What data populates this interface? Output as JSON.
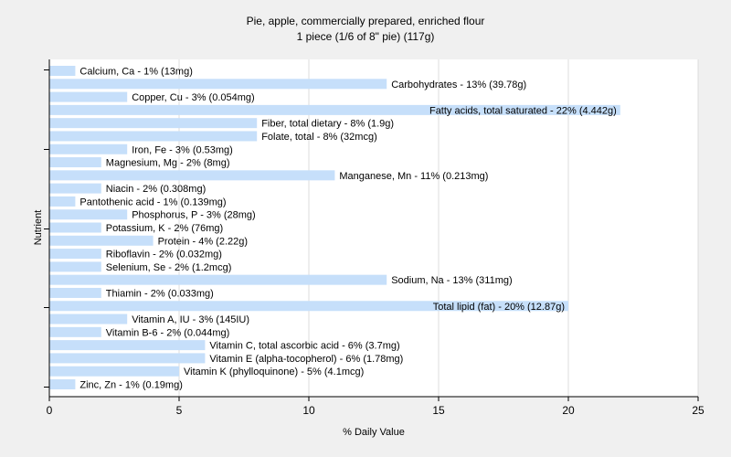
{
  "chart_data": {
    "type": "bar",
    "orientation": "horizontal",
    "title": "Pie, apple, commercially prepared, enriched flour",
    "subtitle": "1 piece (1/6 of 8\" pie) (117g)",
    "xlabel": "% Daily Value",
    "ylabel": "Nutrient",
    "xlim": [
      0,
      25
    ],
    "xticks": [
      0,
      5,
      10,
      15,
      20,
      25
    ],
    "grid": "vertical",
    "bar_color": "#c6dffa",
    "categories": [
      "Calcium, Ca",
      "Carbohydrates",
      "Copper, Cu",
      "Fatty acids, total saturated",
      "Fiber, total dietary",
      "Folate, total",
      "Iron, Fe",
      "Magnesium, Mg",
      "Manganese, Mn",
      "Niacin",
      "Pantothenic acid",
      "Phosphorus, P",
      "Potassium, K",
      "Protein",
      "Riboflavin",
      "Selenium, Se",
      "Sodium, Na",
      "Thiamin",
      "Total lipid (fat)",
      "Vitamin A, IU",
      "Vitamin B-6",
      "Vitamin C, total ascorbic acid",
      "Vitamin E (alpha-tocopherol)",
      "Vitamin K (phylloquinone)",
      "Zinc, Zn"
    ],
    "values": [
      1,
      13,
      3,
      22,
      8,
      8,
      3,
      2,
      11,
      2,
      1,
      3,
      2,
      4,
      2,
      2,
      13,
      2,
      20,
      3,
      2,
      6,
      6,
      5,
      1
    ],
    "labels": [
      "Calcium, Ca - 1% (13mg)",
      "Carbohydrates - 13% (39.78g)",
      "Copper, Cu - 3% (0.054mg)",
      "Fatty acids, total saturated - 22% (4.442g)",
      "Fiber, total dietary - 8% (1.9g)",
      "Folate, total - 8% (32mcg)",
      "Iron, Fe - 3% (0.53mg)",
      "Magnesium, Mg - 2% (8mg)",
      "Manganese, Mn - 11% (0.213mg)",
      "Niacin - 2% (0.308mg)",
      "Pantothenic acid - 1% (0.139mg)",
      "Phosphorus, P - 3% (28mg)",
      "Potassium, K - 2% (76mg)",
      "Protein - 4% (2.22g)",
      "Riboflavin - 2% (0.032mg)",
      "Selenium, Se - 2% (1.2mcg)",
      "Sodium, Na - 13% (311mg)",
      "Thiamin - 2% (0.033mg)",
      "Total lipid (fat) - 20% (12.87g)",
      "Vitamin A, IU - 3% (145IU)",
      "Vitamin B-6 - 2% (0.044mg)",
      "Vitamin C, total ascorbic acid - 6% (3.7mg)",
      "Vitamin E (alpha-tocopherol) - 6% (1.78mg)",
      "Vitamin K (phylloquinone) - 5% (4.1mcg)",
      "Zinc, Zn - 1% (0.19mg)"
    ]
  }
}
